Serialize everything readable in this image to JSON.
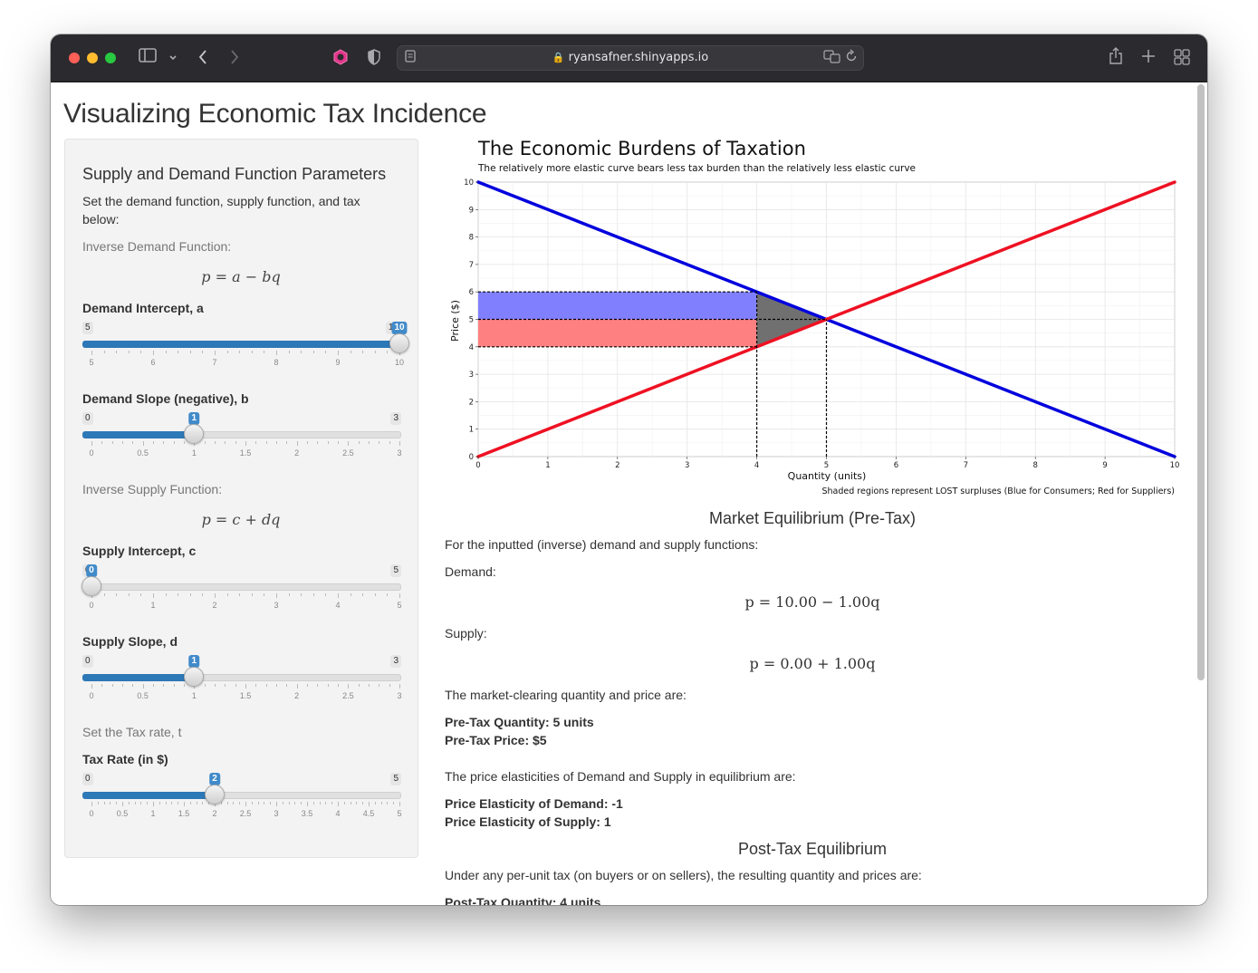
{
  "browser": {
    "url": "ryansafner.shinyapps.io"
  },
  "page": {
    "title": "Visualizing Economic Tax Incidence"
  },
  "sidebar": {
    "heading": "Supply and Demand Function Parameters",
    "intro": "Set the demand function, supply function, and tax below:",
    "demand_label": "Inverse Demand Function:",
    "demand_formula": "p = a − bq",
    "supply_label": "Inverse Supply Function:",
    "supply_formula": "p = c + dq",
    "tax_label": "Set the Tax rate, t",
    "sliders": [
      {
        "label": "Demand Intercept, a",
        "min": "5",
        "max": "10",
        "value": "10",
        "fraction": 1.0,
        "ticks": [
          "5",
          "6",
          "7",
          "8",
          "9",
          "10"
        ]
      },
      {
        "label": "Demand Slope (negative), b",
        "min": "0",
        "max": "3",
        "value": "1",
        "fraction": 0.3333,
        "ticks": [
          "0",
          "0.5",
          "1",
          "1.5",
          "2",
          "2.5",
          "3"
        ]
      },
      {
        "label": "Supply Intercept, c",
        "min": "0",
        "max": "5",
        "value": "0",
        "fraction": 0.0,
        "ticks": [
          "0",
          "1",
          "2",
          "3",
          "4",
          "5"
        ]
      },
      {
        "label": "Supply Slope, d",
        "min": "0",
        "max": "3",
        "value": "1",
        "fraction": 0.3333,
        "ticks": [
          "0",
          "0.5",
          "1",
          "1.5",
          "2",
          "2.5",
          "3"
        ]
      },
      {
        "label": "Tax Rate (in $)",
        "min": "0",
        "max": "5",
        "value": "2",
        "fraction": 0.4,
        "ticks": [
          "0",
          "0.5",
          "1",
          "1.5",
          "2",
          "2.5",
          "3",
          "3.5",
          "4",
          "4.5",
          "5"
        ]
      }
    ]
  },
  "chart_data": {
    "type": "line",
    "title": "The Economic Burdens of Taxation",
    "subtitle": "The relatively more elastic curve bears less tax burden than the relatively less elastic curve",
    "xlabel": "Quantity (units)",
    "ylabel": "Price ($)",
    "caption": "Shaded regions represent LOST surpluses (Blue for Consumers; Red for Suppliers)",
    "xlim": [
      0,
      10
    ],
    "ylim": [
      0,
      10
    ],
    "xticks": [
      "0",
      "1",
      "2",
      "3",
      "4",
      "5",
      "6",
      "7",
      "8",
      "9",
      "10"
    ],
    "yticks": [
      "0",
      "1",
      "2",
      "3",
      "4",
      "5",
      "6",
      "7",
      "8",
      "9",
      "10"
    ],
    "grid": true,
    "series": [
      {
        "x": [
          0,
          10
        ],
        "y": [
          10,
          0
        ],
        "color": "#0000dd"
      },
      {
        "x": [
          0,
          10
        ],
        "y": [
          0,
          10
        ],
        "color": "#ee1122"
      }
    ],
    "regions": [
      {
        "kind": "rect",
        "x": [
          0,
          4
        ],
        "y": [
          5,
          6
        ],
        "color": "#8080ff"
      },
      {
        "kind": "rect",
        "x": [
          0,
          4
        ],
        "y": [
          4,
          5
        ],
        "color": "#ff8080"
      },
      {
        "kind": "triangle",
        "points": [
          [
            4,
            6
          ],
          [
            4,
            4
          ],
          [
            5,
            5
          ]
        ],
        "color": "#707070"
      }
    ],
    "dashed_lines": [
      {
        "x": [
          0,
          4
        ],
        "y": [
          6,
          6
        ]
      },
      {
        "x": [
          0,
          5
        ],
        "y": [
          5,
          5
        ]
      },
      {
        "x": [
          0,
          4
        ],
        "y": [
          4,
          4
        ]
      },
      {
        "x": [
          4,
          4
        ],
        "y": [
          0,
          6
        ]
      },
      {
        "x": [
          5,
          5
        ],
        "y": [
          0,
          5
        ]
      }
    ]
  },
  "main": {
    "pretax_heading": "Market Equilibrium (Pre-Tax)",
    "inputted_text": "For the inputted (inverse) demand and supply functions:",
    "demand_word": "Demand:",
    "demand_eq": "p = 10.00 − 1.00q",
    "supply_word": "Supply:",
    "supply_eq": "p = 0.00 + 1.00q",
    "clearing_text": "The market-clearing quantity and price are:",
    "pretax_quantity": "Pre-Tax Quantity: 5 units",
    "pretax_price": "Pre-Tax Price: $5",
    "elasticity_text": "The price elasticities of Demand and Supply in equilibrium are:",
    "demand_elasticity": "Price Elasticity of Demand: -1",
    "supply_elasticity": "Price Elasticity of Supply: 1",
    "posttax_heading": "Post-Tax Equilibrium",
    "posttax_text": "Under any per-unit tax (on buyers or on sellers), the resulting quantity and prices are:",
    "posttax_quantity": "Post-Tax Quantity: 4 units"
  }
}
